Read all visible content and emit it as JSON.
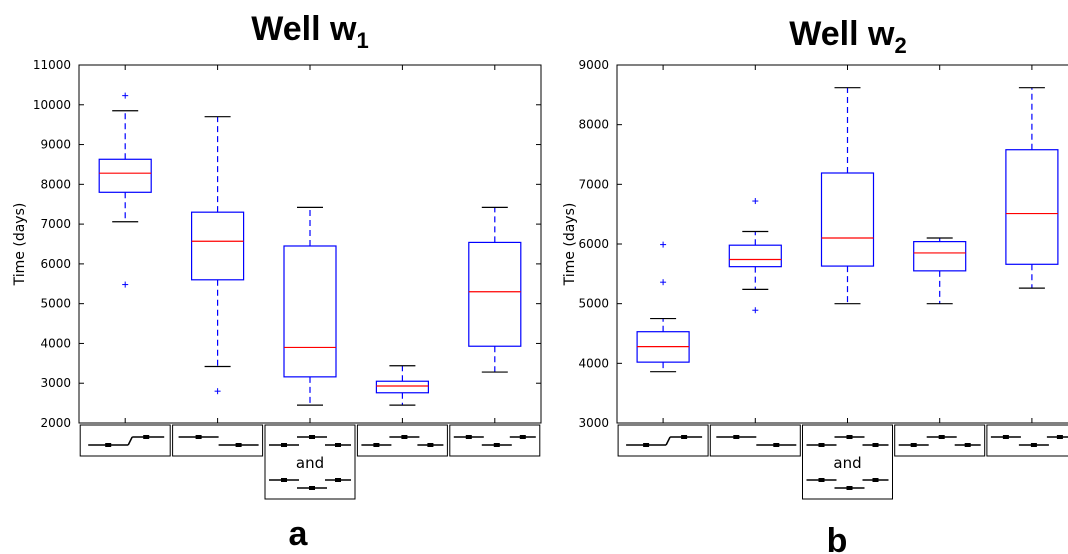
{
  "chart_data": [
    {
      "type": "box",
      "title_main": "Well w",
      "title_sub": "1",
      "panel_label": "a",
      "ylabel": "Time (days)",
      "ylim": [
        2000,
        11000
      ],
      "yticks": [
        2000,
        3000,
        4000,
        5000,
        6000,
        7000,
        8000,
        9000,
        10000,
        11000
      ],
      "grid": false,
      "boxes": [
        {
          "q1": 7800,
          "median": 8280,
          "q3": 8630,
          "whisker_low": 7060,
          "whisker_high": 9850,
          "outliers": [
            10230,
            5480
          ],
          "icon": "pattern-1"
        },
        {
          "q1": 5600,
          "median": 6570,
          "q3": 7300,
          "whisker_low": 3420,
          "whisker_high": 9700,
          "outliers": [
            2800
          ],
          "icon": "pattern-2"
        },
        {
          "q1": 3160,
          "median": 3900,
          "q3": 6450,
          "whisker_low": 2450,
          "whisker_high": 7420,
          "outliers": [],
          "icon": "pattern-3",
          "and_label": "and"
        },
        {
          "q1": 2760,
          "median": 2930,
          "q3": 3050,
          "whisker_low": 2450,
          "whisker_high": 3440,
          "outliers": [],
          "icon": "pattern-4"
        },
        {
          "q1": 3930,
          "median": 5300,
          "q3": 6540,
          "whisker_low": 3280,
          "whisker_high": 7420,
          "outliers": [],
          "icon": "pattern-5"
        }
      ]
    },
    {
      "type": "box",
      "title_main": "Well w",
      "title_sub": "2",
      "panel_label": "b",
      "ylabel": "Time (days)",
      "ylim": [
        3000,
        9000
      ],
      "yticks": [
        3000,
        4000,
        5000,
        6000,
        7000,
        8000,
        9000
      ],
      "grid": false,
      "boxes": [
        {
          "q1": 4020,
          "median": 4280,
          "q3": 4530,
          "whisker_low": 3860,
          "whisker_high": 4750,
          "outliers": [
            5990,
            5360
          ],
          "icon": "pattern-1"
        },
        {
          "q1": 5620,
          "median": 5740,
          "q3": 5980,
          "whisker_low": 5240,
          "whisker_high": 6210,
          "outliers": [
            6720,
            4890
          ],
          "icon": "pattern-2"
        },
        {
          "q1": 5630,
          "median": 6100,
          "q3": 7190,
          "whisker_low": 5000,
          "whisker_high": 8620,
          "outliers": [],
          "icon": "pattern-3",
          "and_label": "and"
        },
        {
          "q1": 5550,
          "median": 5850,
          "q3": 6040,
          "whisker_low": 5000,
          "whisker_high": 6100,
          "outliers": [],
          "icon": "pattern-4"
        },
        {
          "q1": 5660,
          "median": 6510,
          "q3": 7580,
          "whisker_low": 5260,
          "whisker_high": 8620,
          "outliers": [],
          "icon": "pattern-5"
        }
      ]
    }
  ],
  "colors": {
    "box": "#0000ff",
    "median": "#ff0000",
    "whisker_cap": "#000000",
    "outlier": "#0000ff"
  }
}
